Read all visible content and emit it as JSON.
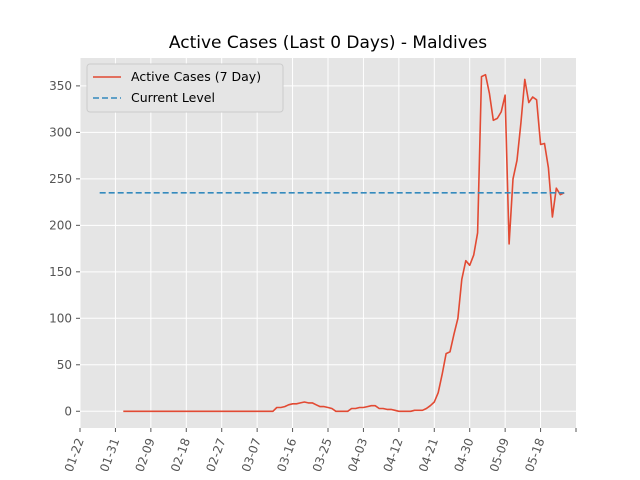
{
  "chart_data": {
    "type": "line",
    "title": "Active Cases (Last 0 Days) - Maldives",
    "xlabel": "",
    "ylabel": "",
    "x_start_date": "2020-01-22",
    "x_tick_labels": [
      "01-22",
      "01-31",
      "02-09",
      "02-18",
      "02-27",
      "03-07",
      "03-16",
      "03-25",
      "04-03",
      "04-12",
      "04-21",
      "04-30",
      "05-09",
      "05-18"
    ],
    "x_tick_days": [
      0,
      9,
      18,
      27,
      36,
      45,
      54,
      63,
      72,
      81,
      90,
      99,
      108,
      117
    ],
    "xlim_days": [
      0,
      126
    ],
    "ylim": [
      -18,
      380
    ],
    "y_ticks": [
      0,
      50,
      100,
      150,
      200,
      250,
      300,
      350
    ],
    "grid": true,
    "legend_position": "upper-left",
    "series": [
      {
        "name": "Active Cases (7 Day)",
        "style": "solid",
        "color": "#e24a33",
        "points": [
          [
            11,
            0
          ],
          [
            20,
            0
          ],
          [
            30,
            0
          ],
          [
            40,
            0
          ],
          [
            49,
            0
          ],
          [
            50,
            4
          ],
          [
            51,
            4
          ],
          [
            52,
            5
          ],
          [
            53,
            7
          ],
          [
            54,
            8
          ],
          [
            55,
            8
          ],
          [
            56,
            9
          ],
          [
            57,
            10
          ],
          [
            58,
            9
          ],
          [
            59,
            9
          ],
          [
            60,
            7
          ],
          [
            61,
            5
          ],
          [
            62,
            5
          ],
          [
            63,
            4
          ],
          [
            64,
            3
          ],
          [
            65,
            0
          ],
          [
            66,
            0
          ],
          [
            67,
            0
          ],
          [
            68,
            0
          ],
          [
            69,
            3
          ],
          [
            70,
            3
          ],
          [
            71,
            4
          ],
          [
            72,
            4
          ],
          [
            73,
            5
          ],
          [
            74,
            6
          ],
          [
            75,
            6
          ],
          [
            76,
            3
          ],
          [
            77,
            3
          ],
          [
            78,
            2
          ],
          [
            79,
            2
          ],
          [
            80,
            1
          ],
          [
            81,
            0
          ],
          [
            82,
            0
          ],
          [
            83,
            0
          ],
          [
            84,
            0
          ],
          [
            85,
            1
          ],
          [
            86,
            1
          ],
          [
            87,
            1
          ],
          [
            88,
            3
          ],
          [
            89,
            6
          ],
          [
            90,
            10
          ],
          [
            91,
            20
          ],
          [
            92,
            40
          ],
          [
            93,
            62
          ],
          [
            94,
            64
          ],
          [
            95,
            83
          ],
          [
            96,
            100
          ],
          [
            97,
            142
          ],
          [
            98,
            162
          ],
          [
            99,
            157
          ],
          [
            100,
            168
          ],
          [
            101,
            192
          ],
          [
            102,
            360
          ],
          [
            103,
            362
          ],
          [
            104,
            342
          ],
          [
            105,
            313
          ],
          [
            106,
            315
          ],
          [
            107,
            322
          ],
          [
            108,
            340
          ],
          [
            109,
            180
          ],
          [
            110,
            250
          ],
          [
            111,
            270
          ],
          [
            112,
            310
          ],
          [
            113,
            357
          ],
          [
            114,
            332
          ],
          [
            115,
            338
          ],
          [
            116,
            335
          ],
          [
            117,
            287
          ],
          [
            118,
            288
          ],
          [
            119,
            262
          ],
          [
            120,
            209
          ],
          [
            121,
            240
          ],
          [
            122,
            233
          ],
          [
            123,
            235
          ]
        ]
      },
      {
        "name": "Current Level",
        "style": "dashed",
        "color": "#348abd",
        "value": 235,
        "x_range_days": [
          5,
          123
        ]
      }
    ]
  }
}
